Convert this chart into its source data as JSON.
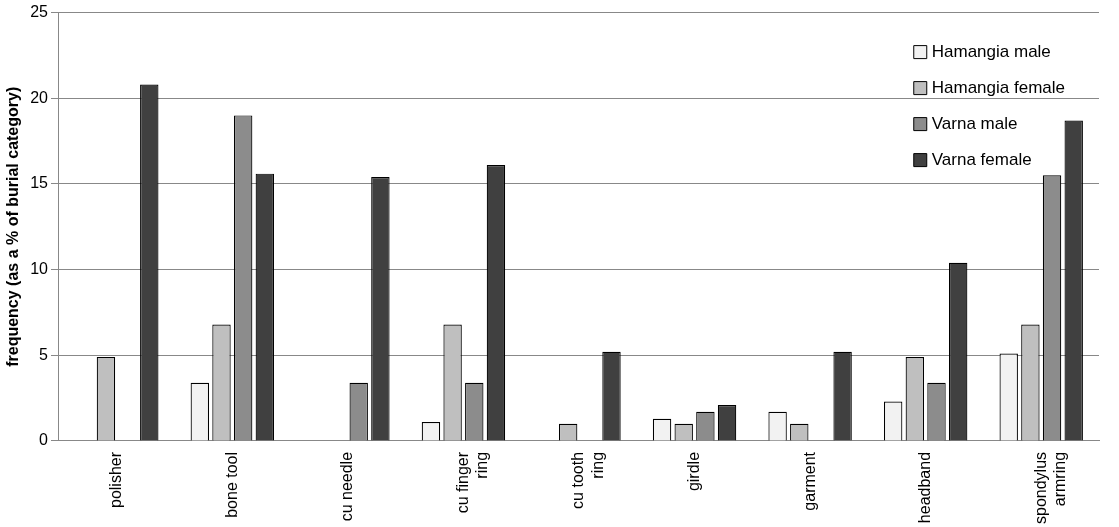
{
  "chart_data": {
    "type": "bar",
    "ylabel": "frequency (as a % of burial category)",
    "categories": [
      "polisher",
      "bone tool",
      "cu needle",
      "cu finger ring",
      "cu tooth ring",
      "girdle",
      "garment",
      "headband",
      "spondylus armring"
    ],
    "series": [
      {
        "name": "Hamangia male",
        "color": "#f2f2f2",
        "values": [
          0,
          3.4,
          0,
          1.1,
          0,
          1.3,
          1.7,
          2.3,
          5.1
        ]
      },
      {
        "name": "Hamangia female",
        "color": "#bfbfbf",
        "values": [
          4.9,
          6.8,
          0,
          6.8,
          1.0,
          1.0,
          1.0,
          4.9,
          6.8
        ]
      },
      {
        "name": "Varna male",
        "color": "#8c8c8c",
        "values": [
          0,
          19.0,
          3.4,
          3.4,
          0,
          1.7,
          0,
          3.4,
          15.5
        ]
      },
      {
        "name": "Varna female",
        "color": "#404040",
        "values": [
          20.8,
          15.6,
          15.4,
          16.1,
          5.2,
          2.1,
          5.2,
          10.4,
          18.7
        ]
      }
    ],
    "ylim": [
      0,
      25
    ],
    "yticks": [
      0,
      5,
      10,
      15,
      20,
      25
    ],
    "grid": "y",
    "legend": "top right"
  }
}
